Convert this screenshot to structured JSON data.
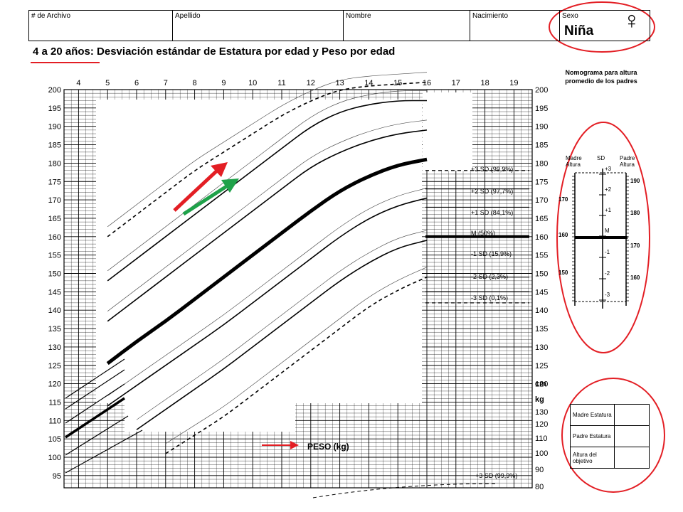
{
  "header": {
    "archivo_label": "# de Archivo",
    "apellido_label": "Apellido",
    "nombre_label": "Nombre",
    "nacimiento_label": "Nacimiento",
    "sexo_label": "Sexo",
    "sexo_value": "Niña",
    "sexo_symbol": "♀"
  },
  "title": "4 a 20 años: Desviación estándar de Estatura por edad y Peso por edad",
  "nomogram": {
    "title": "Nomograma para altura promedio de los padres",
    "mother_label": "Madre Altura",
    "sd_label": "SD",
    "father_label": "Padre Altura",
    "mother_ticks": [
      "170",
      "160",
      "150"
    ],
    "father_ticks": [
      "190",
      "180",
      "170",
      "160"
    ],
    "sd_ticks": [
      "+3",
      "+2",
      "+1",
      "M",
      "-1",
      "-2",
      "-3"
    ]
  },
  "goal_table": {
    "rows": [
      "Madre Estatura",
      "Padre Estatura",
      "Altura del objetivo"
    ]
  },
  "annotation_colors": {
    "red": "#e31e24",
    "green": "#1fa24a"
  },
  "chart_data": {
    "type": "line",
    "title": "4 a 20 años: Desviación estándar de Estatura por edad y Peso por edad",
    "x_ticks": [
      4,
      5,
      6,
      7,
      8,
      9,
      10,
      11,
      12,
      13,
      14,
      15,
      16,
      17,
      18,
      19
    ],
    "y_ticks_cm": [
      200,
      195,
      190,
      185,
      180,
      175,
      170,
      165,
      160,
      155,
      150,
      145,
      140,
      135,
      130,
      125,
      120,
      115,
      110,
      105,
      100,
      95
    ],
    "y_ticks_kg": [
      130,
      120,
      110,
      100,
      90,
      80
    ],
    "unit_cm": "cm",
    "unit_kg": "kg",
    "peso_label": "PESO (kg)",
    "grid": true,
    "height_series": [
      {
        "name": "+3 SD (99,9%)",
        "x": [
          5,
          6,
          7,
          8,
          9,
          10,
          11,
          12,
          13,
          14,
          15,
          16
        ],
        "values": [
          160,
          166,
          172,
          178,
          183,
          188,
          193,
          197,
          200,
          201,
          201.5,
          202
        ],
        "style": "dashed"
      },
      {
        "name": "+2 SD (97,7%)",
        "x": [
          5,
          6,
          7,
          8,
          9,
          10,
          11,
          12,
          13,
          14,
          15,
          16
        ],
        "values": [
          148,
          154,
          160,
          166,
          172,
          178,
          184,
          190,
          194,
          196,
          197,
          197
        ],
        "style": "solid"
      },
      {
        "name": "+1 SD (84,1%)",
        "x": [
          5,
          6,
          7,
          8,
          9,
          10,
          11,
          12,
          13,
          14,
          15,
          16
        ],
        "values": [
          137,
          143,
          149,
          155,
          161,
          167,
          173,
          179,
          183,
          186,
          188,
          189
        ],
        "style": "solid"
      },
      {
        "name": "M (50%)",
        "x": [
          5,
          6,
          7,
          8,
          9,
          10,
          11,
          12,
          13,
          14,
          15,
          16
        ],
        "values": [
          125.5,
          131.5,
          137,
          143,
          149,
          155,
          161,
          167,
          172.5,
          176.5,
          179.5,
          181
        ],
        "style": "bold"
      },
      {
        "name": "-1 SD (15,9%)",
        "x": [
          5,
          6,
          7,
          8,
          9,
          10,
          11,
          12,
          13,
          14,
          15,
          16
        ],
        "values": [
          114,
          119.5,
          125,
          130.5,
          136,
          142,
          148,
          154,
          160,
          165,
          168.5,
          170.5
        ],
        "style": "solid"
      },
      {
        "name": "-2 SD (2,3%)",
        "x": [
          6,
          7,
          8,
          9,
          10,
          11,
          12,
          13,
          14,
          15,
          16
        ],
        "values": [
          107.5,
          113,
          118.5,
          124,
          130,
          136,
          142,
          148,
          153,
          157,
          159
        ],
        "style": "solid"
      },
      {
        "name": "-3 SD (0,1%)",
        "x": [
          7,
          8,
          9,
          10,
          11,
          12,
          13,
          14,
          15,
          16
        ],
        "values": [
          101,
          106,
          111,
          117,
          123,
          129,
          135,
          141,
          145.5,
          149
        ],
        "style": "dashed"
      }
    ],
    "right_labels": [
      "+3 SD (99,9%)",
      "+2 SD (97,7%)",
      "+1 SD (84,1%)",
      "M (50%)",
      "-1 SD (15,9%)",
      "-2 SD (2,3%)",
      "-3 SD (0,1%)"
    ],
    "weight_series_label": "+3 SD (99,9%)"
  }
}
